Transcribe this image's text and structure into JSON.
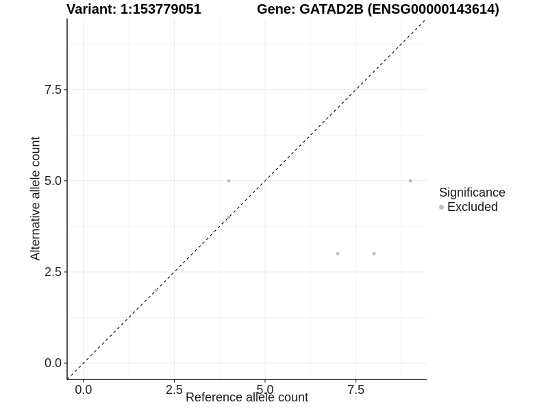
{
  "chart_data": {
    "type": "scatter",
    "title_left": "Variant: 1:153779051",
    "title_right": "Gene: GATAD2B (ENSG00000143614)",
    "xlabel": "Reference allele count",
    "ylabel": "Alternative allele count",
    "xlim": [
      -0.45,
      9.45
    ],
    "ylim": [
      -0.45,
      9.45
    ],
    "x_ticks": [
      0,
      2.5,
      5,
      7.5
    ],
    "x_tick_labels": [
      "0.0",
      "2.5",
      "5.0",
      "7.5"
    ],
    "y_ticks": [
      0,
      2.5,
      5,
      7.5
    ],
    "y_tick_labels": [
      "0.0",
      "2.5",
      "5.0",
      "7.5"
    ],
    "minor_grid_x": [
      1.25,
      3.75,
      6.25,
      8.75
    ],
    "minor_grid_y": [
      1.25,
      3.75,
      6.25,
      8.75
    ],
    "grid": "major+minor",
    "identity_line": {
      "style": "dashed",
      "color": "#000000",
      "from": [
        -0.45,
        -0.45
      ],
      "to": [
        9.45,
        9.45
      ]
    },
    "series": [
      {
        "name": "Excluded",
        "color": "#bdbdbd",
        "points": [
          [
            2,
            2
          ],
          [
            4,
            4
          ],
          [
            4,
            5
          ],
          [
            7,
            3
          ],
          [
            8,
            3
          ],
          [
            9,
            5
          ]
        ]
      }
    ],
    "legend": {
      "title": "Significance",
      "position": "right",
      "entries": [
        {
          "label": "Excluded",
          "color": "#bdbdbd"
        }
      ]
    }
  },
  "colors": {
    "background": "#ffffff",
    "grid_major": "#ebebeb",
    "grid_minor": "#f4f4f4",
    "axis_line": "#1a1a1a",
    "tick_mark": "#333333",
    "tick_text": "#262626",
    "point": "#bdbdbd"
  }
}
